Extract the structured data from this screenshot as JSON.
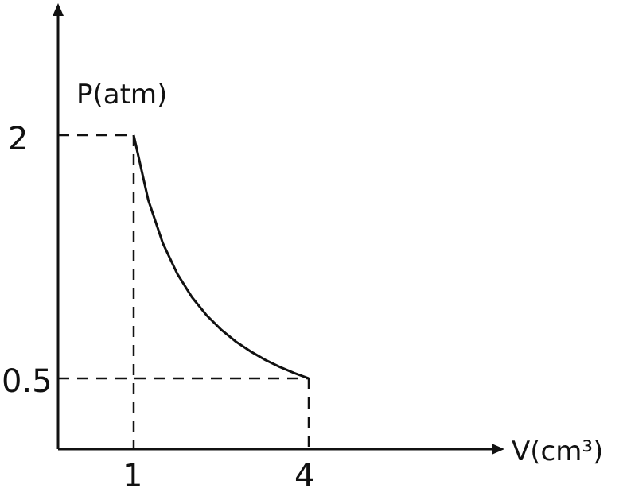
{
  "chart_data": {
    "type": "line",
    "title": "",
    "xlabel": "V(cm³)",
    "ylabel": "P(atm)",
    "x_ticks": [
      "1",
      "4"
    ],
    "y_ticks": [
      "2",
      "0.5"
    ],
    "series": [
      {
        "x": [
          1,
          1.25,
          1.5,
          1.75,
          2,
          2.25,
          2.5,
          2.75,
          3,
          3.25,
          3.5,
          3.75,
          4
        ],
        "y": [
          2,
          1.6,
          1.333,
          1.143,
          1,
          0.889,
          0.8,
          0.727,
          0.667,
          0.615,
          0.571,
          0.533,
          0.5
        ]
      }
    ],
    "points": [
      {
        "x": 1,
        "y": 2
      },
      {
        "x": 4,
        "y": 0.5
      }
    ],
    "grid": false,
    "colors": {
      "line": "#111111",
      "axis": "#111111",
      "guide": "#111111"
    }
  }
}
